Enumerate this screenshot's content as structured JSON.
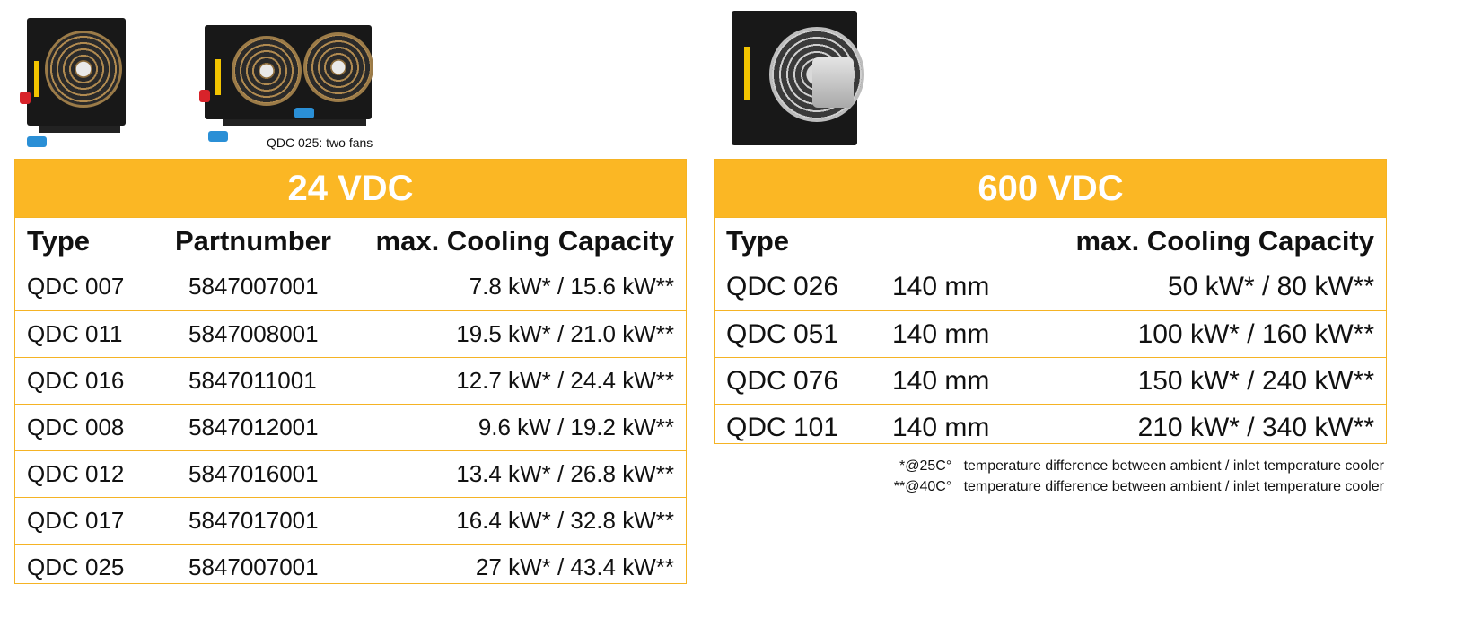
{
  "images": {
    "caption": "QDC 025: two fans"
  },
  "table_24vdc": {
    "title": "24 VDC",
    "headers": {
      "type": "Type",
      "partnumber": "Partnumber",
      "capacity": "max. Cooling Capacity"
    },
    "rows": [
      {
        "type": "QDC 007",
        "part": "5847007001",
        "capacity": "7.8 kW* / 15.6 kW**"
      },
      {
        "type": "QDC 011",
        "part": "5847008001",
        "capacity": "19.5 kW* / 21.0 kW**"
      },
      {
        "type": "QDC 016",
        "part": "5847011001",
        "capacity": "12.7 kW* / 24.4 kW**"
      },
      {
        "type": "QDC 008",
        "part": "5847012001",
        "capacity": "9.6 kW / 19.2 kW**"
      },
      {
        "type": "QDC 012",
        "part": "5847016001",
        "capacity": "13.4 kW* / 26.8 kW**"
      },
      {
        "type": "QDC 017",
        "part": "5847017001",
        "capacity": "16.4 kW* / 32.8 kW**"
      },
      {
        "type": "QDC 025",
        "part": "5847007001",
        "capacity": "27 kW* / 43.4 kW**"
      }
    ]
  },
  "table_600vdc": {
    "title": "600 VDC",
    "headers": {
      "type": "Type",
      "capacity": "max. Cooling Capacity"
    },
    "rows": [
      {
        "type": "QDC 026",
        "size": "140 mm",
        "capacity": "50 kW* / 80 kW**"
      },
      {
        "type": "QDC 051",
        "size": "140 mm",
        "capacity": "100 kW* / 160 kW**"
      },
      {
        "type": "QDC 076",
        "size": "140 mm",
        "capacity": "150 kW* / 240 kW**"
      },
      {
        "type": "QDC 101",
        "size": "140 mm",
        "capacity": "210 kW* / 340 kW**"
      }
    ]
  },
  "footnotes": [
    "*@25C°   temperature difference between ambient / inlet temperature cooler",
    "**@40C°   temperature difference between ambient / inlet temperature cooler"
  ]
}
